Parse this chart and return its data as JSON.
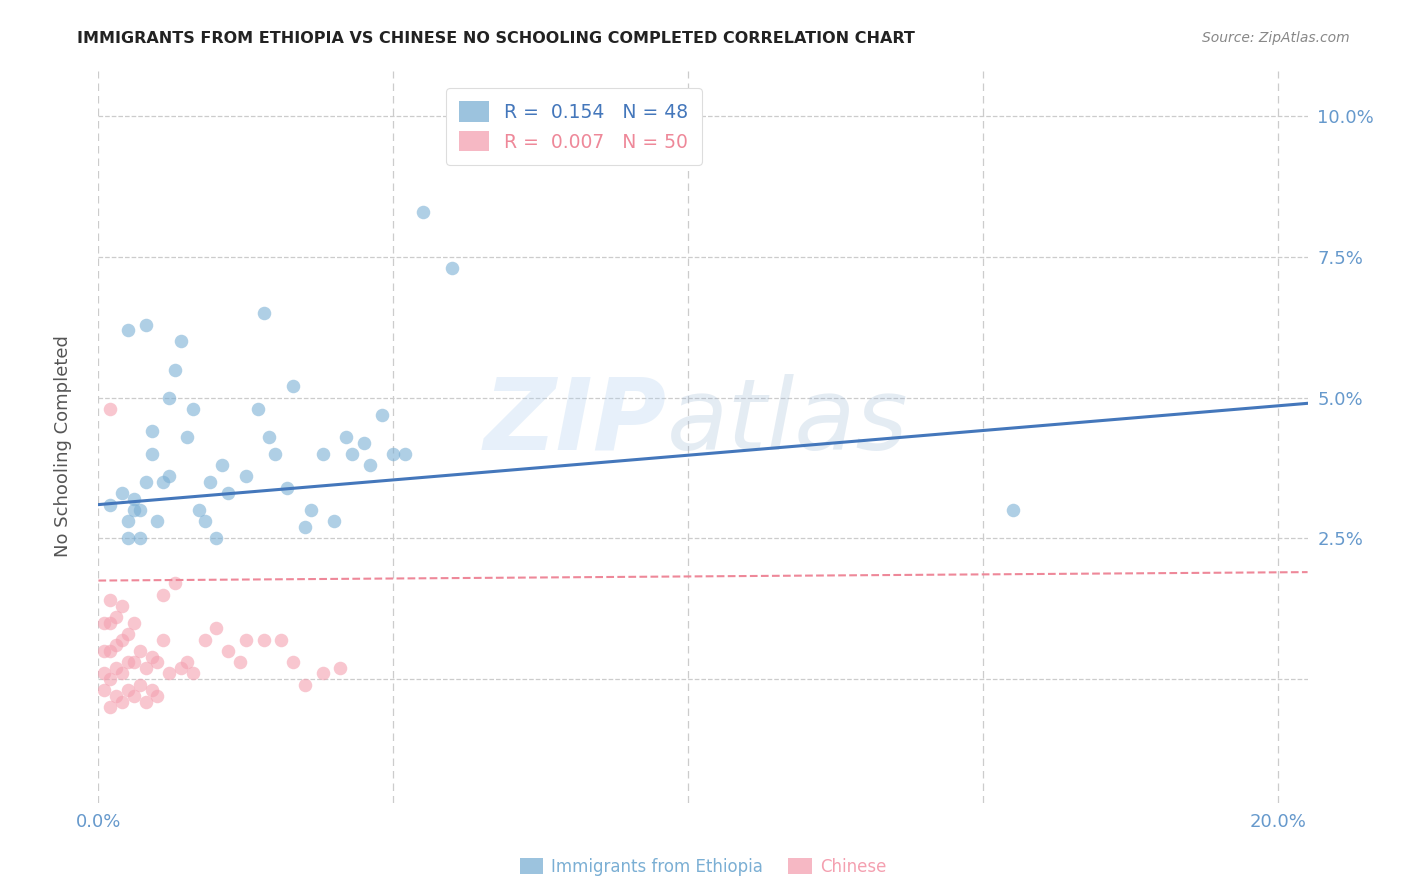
{
  "title": "IMMIGRANTS FROM ETHIOPIA VS CHINESE NO SCHOOLING COMPLETED CORRELATION CHART",
  "source": "Source: ZipAtlas.com",
  "ylabel": "No Schooling Completed",
  "xlim": [
    0.0,
    0.205
  ],
  "ylim": [
    -0.022,
    0.108
  ],
  "yticks": [
    0.0,
    0.025,
    0.05,
    0.075,
    0.1
  ],
  "ytick_labels": [
    "",
    "2.5%",
    "5.0%",
    "7.5%",
    "10.0%"
  ],
  "xticks": [
    0.0,
    0.05,
    0.1,
    0.15,
    0.2
  ],
  "xtick_labels": [
    "0.0%",
    "",
    "",
    "",
    "20.0%"
  ],
  "legend_blue_R": "0.154",
  "legend_blue_N": "48",
  "legend_pink_R": "0.007",
  "legend_pink_N": "50",
  "blue_color": "#7BAFD4",
  "pink_color": "#F4A0B0",
  "trend_blue": "#4477BB",
  "trend_pink": "#EE8899",
  "watermark_zip": "ZIP",
  "watermark_atlas": "atlas",
  "blue_scatter_x": [
    0.002,
    0.004,
    0.005,
    0.005,
    0.006,
    0.006,
    0.007,
    0.007,
    0.008,
    0.009,
    0.009,
    0.01,
    0.011,
    0.012,
    0.012,
    0.013,
    0.014,
    0.015,
    0.016,
    0.017,
    0.018,
    0.019,
    0.02,
    0.021,
    0.022,
    0.025,
    0.027,
    0.028,
    0.029,
    0.03,
    0.032,
    0.033,
    0.035,
    0.036,
    0.038,
    0.04,
    0.042,
    0.043,
    0.045,
    0.046,
    0.048,
    0.05,
    0.052,
    0.055,
    0.06,
    0.155,
    0.005,
    0.008
  ],
  "blue_scatter_y": [
    0.031,
    0.033,
    0.025,
    0.028,
    0.03,
    0.032,
    0.03,
    0.025,
    0.035,
    0.04,
    0.044,
    0.028,
    0.035,
    0.05,
    0.036,
    0.055,
    0.06,
    0.043,
    0.048,
    0.03,
    0.028,
    0.035,
    0.025,
    0.038,
    0.033,
    0.036,
    0.048,
    0.065,
    0.043,
    0.04,
    0.034,
    0.052,
    0.027,
    0.03,
    0.04,
    0.028,
    0.043,
    0.04,
    0.042,
    0.038,
    0.047,
    0.04,
    0.04,
    0.083,
    0.073,
    0.03,
    0.062,
    0.063
  ],
  "pink_scatter_x": [
    0.001,
    0.001,
    0.001,
    0.001,
    0.002,
    0.002,
    0.002,
    0.002,
    0.002,
    0.003,
    0.003,
    0.003,
    0.003,
    0.004,
    0.004,
    0.004,
    0.004,
    0.005,
    0.005,
    0.005,
    0.006,
    0.006,
    0.006,
    0.007,
    0.007,
    0.008,
    0.008,
    0.009,
    0.009,
    0.01,
    0.01,
    0.011,
    0.011,
    0.012,
    0.013,
    0.014,
    0.015,
    0.016,
    0.018,
    0.02,
    0.022,
    0.024,
    0.025,
    0.028,
    0.031,
    0.033,
    0.035,
    0.038,
    0.041,
    0.002
  ],
  "pink_scatter_y": [
    -0.002,
    0.001,
    0.005,
    0.01,
    -0.005,
    0.0,
    0.005,
    0.01,
    0.014,
    -0.003,
    0.002,
    0.006,
    0.011,
    -0.004,
    0.001,
    0.007,
    0.013,
    -0.002,
    0.003,
    0.008,
    -0.003,
    0.003,
    0.01,
    -0.001,
    0.005,
    -0.004,
    0.002,
    -0.002,
    0.004,
    -0.003,
    0.003,
    0.007,
    0.015,
    0.001,
    0.017,
    0.002,
    0.003,
    0.001,
    0.007,
    0.009,
    0.005,
    0.003,
    0.007,
    0.007,
    0.007,
    0.003,
    -0.001,
    0.001,
    0.002,
    0.048
  ],
  "blue_trend_x": [
    0.0,
    0.205
  ],
  "blue_trend_y": [
    0.031,
    0.049
  ],
  "pink_trend_x": [
    0.0,
    0.205
  ],
  "pink_trend_y": [
    0.0175,
    0.019
  ],
  "grid_color": "#CCCCCC",
  "background_color": "#FFFFFF",
  "tick_color": "#6699CC",
  "ylabel_color": "#555555",
  "title_color": "#222222",
  "source_color": "#888888"
}
